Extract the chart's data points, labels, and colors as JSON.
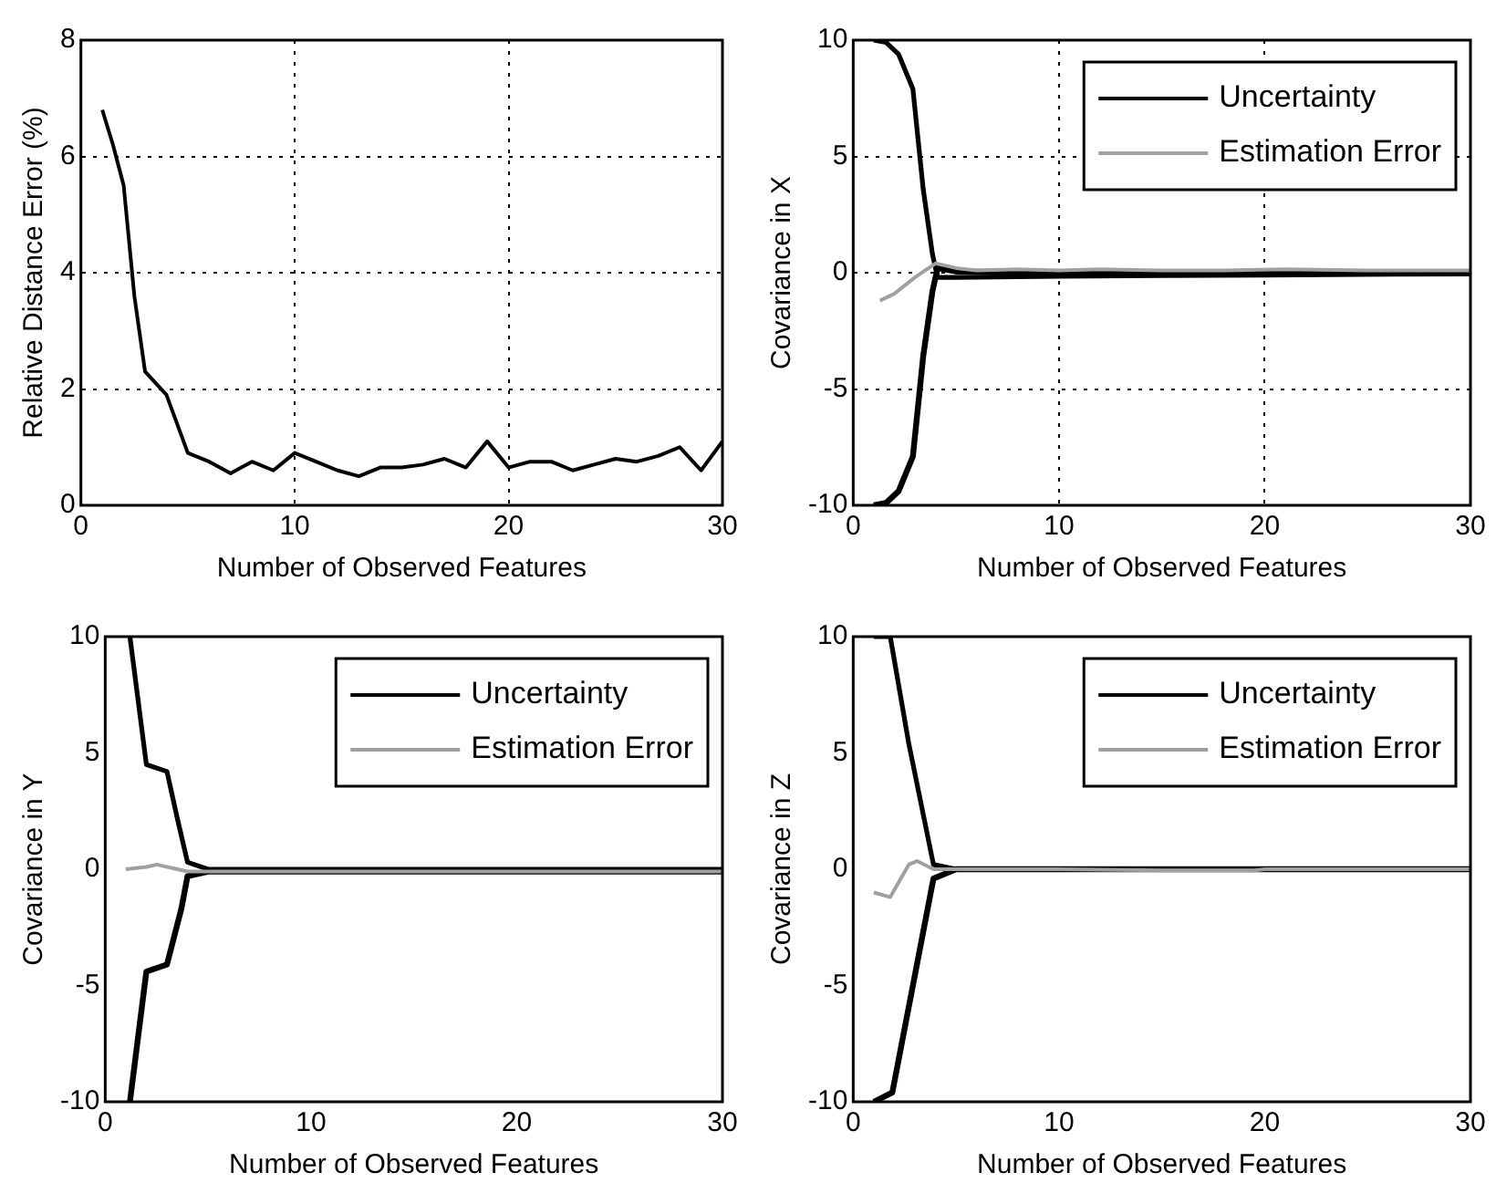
{
  "chart_data": [
    {
      "type": "line",
      "xlabel": "Number of Observed Features",
      "ylabel": "Relative Distance Error (%)",
      "xlim": [
        0,
        30
      ],
      "xticks": [
        0,
        10,
        20,
        30
      ],
      "ylim": [
        0,
        8
      ],
      "yticks": [
        0,
        2,
        4,
        6,
        8
      ],
      "grid": true,
      "legend": false,
      "marker": "none",
      "line_style": "solid",
      "series": [
        {
          "color": "#000000",
          "x": [
            1,
            1.5,
            2,
            2.5,
            3,
            4,
            5,
            6,
            7,
            8,
            9,
            10,
            11,
            12,
            13,
            14,
            15,
            16,
            17,
            18,
            19,
            20,
            21,
            22,
            23,
            24,
            25,
            26,
            27,
            28,
            29,
            30
          ],
          "values": [
            6.8,
            6.2,
            5.5,
            3.6,
            2.3,
            1.9,
            0.9,
            0.75,
            0.55,
            0.75,
            0.6,
            0.9,
            0.75,
            0.6,
            0.5,
            0.65,
            0.65,
            0.7,
            0.8,
            0.65,
            1.1,
            0.65,
            0.75,
            0.75,
            0.6,
            0.7,
            0.8,
            0.75,
            0.85,
            1.0,
            0.6,
            1.1
          ]
        }
      ]
    },
    {
      "type": "line",
      "xlabel": "Number of Observed Features",
      "ylabel": "Covariance in X",
      "xlim": [
        0,
        30
      ],
      "xticks": [
        0,
        10,
        20,
        30
      ],
      "ylim": [
        -10,
        10
      ],
      "yticks": [
        -10,
        -5,
        0,
        5,
        10
      ],
      "grid": true,
      "legend": "top right",
      "marker": "none",
      "line_style": "solid",
      "series": [
        {
          "name": "Uncertainty",
          "color": "#000000",
          "x": [
            1,
            1.6,
            2.2,
            2.9,
            3.4,
            3.85,
            4.1,
            5,
            10,
            20,
            30
          ],
          "values": [
            10,
            9.9,
            9.4,
            7.9,
            3.6,
            0.8,
            -0.2,
            -0.2,
            -0.15,
            -0.1,
            -0.05
          ]
        },
        {
          "name": "Estimation Error",
          "color": "#a0a0a0",
          "x": [
            1.3,
            2,
            3,
            4,
            5,
            6,
            8,
            10,
            12,
            15,
            18,
            21,
            25,
            30
          ],
          "values": [
            -1.2,
            -0.9,
            -0.2,
            0.4,
            0.2,
            0.1,
            0.15,
            0.1,
            0.15,
            0.1,
            0.1,
            0.15,
            0.1,
            0.1
          ]
        },
        {
          "color": "#000000",
          "x": [
            1,
            1.6,
            2.2,
            2.9,
            3.4,
            3.85,
            4.1,
            5,
            10,
            20,
            30
          ],
          "values": [
            -10,
            -9.9,
            -9.4,
            -7.9,
            -3.6,
            -0.8,
            0.2,
            0.05,
            0,
            0,
            0
          ]
        }
      ]
    },
    {
      "type": "line",
      "xlabel": "Number of Observed Features",
      "ylabel": "Covariance in Y",
      "xlim": [
        0,
        30
      ],
      "xticks": [
        0,
        10,
        20,
        30
      ],
      "ylim": [
        -10,
        10
      ],
      "yticks": [
        -10,
        -5,
        0,
        5,
        10
      ],
      "grid": false,
      "legend": "top right",
      "marker": "none",
      "line_style": "solid",
      "series": [
        {
          "name": "Uncertainty",
          "color": "#000000",
          "x": [
            1.2,
            2,
            3,
            3.5,
            4,
            5,
            10,
            20,
            30
          ],
          "values": [
            10,
            4.5,
            4.2,
            2.2,
            0.3,
            0,
            0,
            0,
            0
          ]
        },
        {
          "name": "Estimation Error",
          "color": "#a0a0a0",
          "x": [
            1,
            2,
            2.5,
            3.5,
            4,
            6,
            10,
            15,
            19.5,
            20,
            30
          ],
          "values": [
            0,
            0.1,
            0.2,
            0,
            -0.1,
            -0.1,
            -0.1,
            -0.1,
            -0.1,
            -0.1,
            -0.1
          ]
        },
        {
          "color": "#000000",
          "x": [
            1.2,
            2,
            3,
            3.7,
            4,
            5,
            10,
            20,
            30
          ],
          "values": [
            -10,
            -4.4,
            -4.1,
            -1.7,
            -0.3,
            -0.1,
            -0.1,
            -0.1,
            -0.1
          ]
        }
      ]
    },
    {
      "type": "line",
      "xlabel": "Number of Observed Features",
      "ylabel": "Covariance in Z",
      "xlim": [
        0,
        30
      ],
      "xticks": [
        0,
        10,
        20,
        30
      ],
      "ylim": [
        -10,
        10
      ],
      "yticks": [
        -10,
        -5,
        0,
        5,
        10
      ],
      "grid": false,
      "legend": "top right",
      "marker": "none",
      "line_style": "solid",
      "series": [
        {
          "name": "Uncertainty",
          "color": "#000000",
          "x": [
            1,
            1.8,
            2.7,
            3.9,
            5,
            10,
            20,
            30
          ],
          "values": [
            10,
            10,
            5.4,
            0.2,
            0,
            0,
            0,
            0
          ]
        },
        {
          "name": "Estimation Error",
          "color": "#a0a0a0",
          "x": [
            1,
            1.8,
            2.7,
            3.1,
            3.9,
            6,
            10,
            15,
            19.5,
            20,
            30
          ],
          "values": [
            -1,
            -1.2,
            0.2,
            0.35,
            0,
            0,
            0,
            -0.05,
            -0.05,
            0,
            0
          ]
        },
        {
          "color": "#000000",
          "x": [
            1,
            1.9,
            3.9,
            5,
            10,
            20,
            30
          ],
          "values": [
            -10,
            -9.6,
            -0.4,
            0,
            0,
            0,
            0
          ]
        }
      ]
    }
  ]
}
